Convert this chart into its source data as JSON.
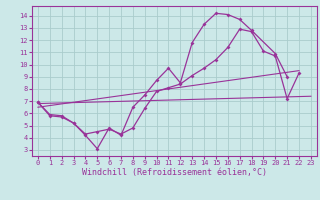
{
  "background_color": "#cce8e8",
  "grid_color": "#aacccc",
  "line_color": "#993399",
  "marker_color": "#993399",
  "xlim": [
    -0.5,
    23.5
  ],
  "ylim": [
    2.5,
    14.8
  ],
  "xticks": [
    0,
    1,
    2,
    3,
    4,
    5,
    6,
    7,
    8,
    9,
    10,
    11,
    12,
    13,
    14,
    15,
    16,
    17,
    18,
    19,
    20,
    21,
    22,
    23
  ],
  "yticks": [
    3,
    4,
    5,
    6,
    7,
    8,
    9,
    10,
    11,
    12,
    13,
    14
  ],
  "xlabel": "Windchill (Refroidissement éolien,°C)",
  "xlabel_fontsize": 6.0,
  "line1_x": [
    0,
    1,
    2,
    3,
    4,
    5,
    6,
    7,
    8,
    9,
    10,
    11,
    12,
    13,
    14,
    15,
    16,
    17,
    18,
    20,
    21
  ],
  "line1_y": [
    6.9,
    5.9,
    5.8,
    5.2,
    4.2,
    3.1,
    4.8,
    4.2,
    6.5,
    7.5,
    8.7,
    9.7,
    8.5,
    11.8,
    13.3,
    14.2,
    14.1,
    13.7,
    12.8,
    10.9,
    9.0
  ],
  "line2_x": [
    0,
    1,
    2,
    3,
    4,
    5,
    6,
    7,
    8,
    9,
    10,
    11,
    12,
    13,
    14,
    15,
    16,
    17,
    18,
    19,
    20,
    21,
    22
  ],
  "line2_y": [
    6.9,
    5.8,
    5.7,
    5.2,
    4.3,
    4.5,
    4.7,
    4.3,
    4.8,
    6.4,
    7.8,
    8.1,
    8.4,
    9.1,
    9.7,
    10.4,
    11.4,
    12.9,
    12.7,
    11.1,
    10.7,
    7.2,
    9.3
  ],
  "line3_x": [
    0,
    22
  ],
  "line3_y": [
    6.5,
    9.5
  ],
  "line4_x": [
    0,
    23
  ],
  "line4_y": [
    6.8,
    7.4
  ]
}
